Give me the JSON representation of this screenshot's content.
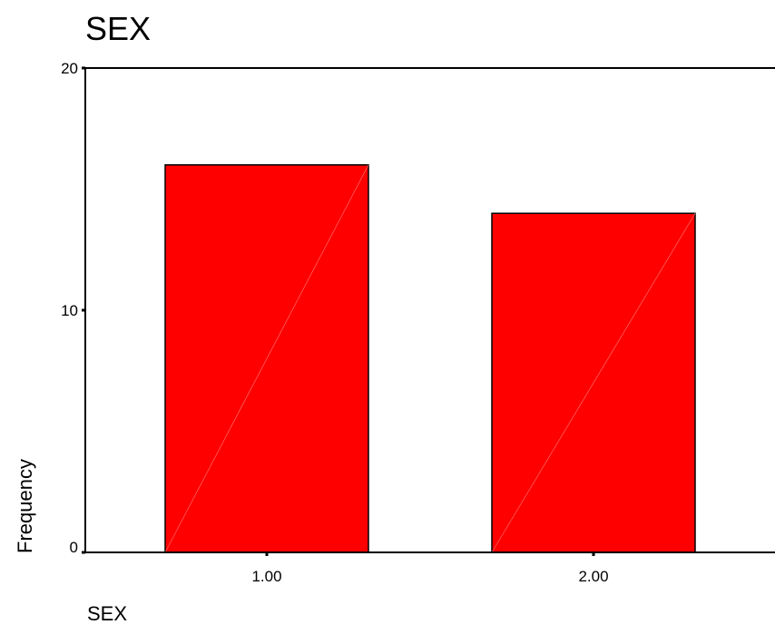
{
  "chart_data": {
    "type": "bar",
    "title": "SEX",
    "xlabel": "SEX",
    "ylabel": "Frequency",
    "categories": [
      "1.00",
      "2.00"
    ],
    "values": [
      16,
      14
    ],
    "ylim": [
      0,
      20
    ],
    "yticks": [
      "0",
      "10",
      "20"
    ],
    "grid": false,
    "bar_color": "#ff0000",
    "bar_edge_color": "#000000"
  }
}
